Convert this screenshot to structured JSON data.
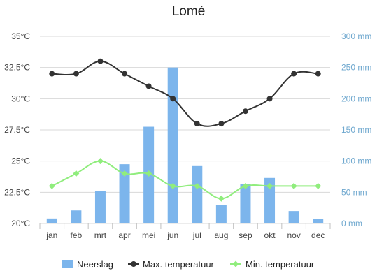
{
  "chart_data": {
    "type": "bar+line",
    "title": "Lomé",
    "categories": [
      "jan",
      "feb",
      "mrt",
      "apr",
      "mei",
      "jun",
      "jul",
      "aug",
      "sep",
      "okt",
      "nov",
      "dec"
    ],
    "y_left": {
      "min": 20,
      "max": 35,
      "ticks": [
        "20°C",
        "22.5°C",
        "25°C",
        "27.5°C",
        "30°C",
        "32.5°C",
        "35°C"
      ],
      "unit": "°C"
    },
    "y_right": {
      "min": 0,
      "max": 300,
      "ticks": [
        "0 mm",
        "50 mm",
        "100 mm",
        "150 mm",
        "200 mm",
        "250 mm",
        "300 mm"
      ],
      "unit": "mm"
    },
    "series": [
      {
        "name": "Neerslag",
        "type": "bar",
        "axis": "right",
        "color": "#7cb5ec",
        "values": [
          8,
          21,
          52,
          95,
          155,
          250,
          92,
          30,
          63,
          73,
          20,
          7
        ]
      },
      {
        "name": "Max. temperatuur",
        "type": "line",
        "axis": "left",
        "color": "#333333",
        "values": [
          32,
          32,
          33,
          32,
          31,
          30,
          28,
          28,
          29,
          30,
          32,
          32
        ]
      },
      {
        "name": "Min. temperatuur",
        "type": "line",
        "axis": "left",
        "color": "#90ed7d",
        "values": [
          23,
          24,
          25,
          24,
          24,
          23,
          23,
          22,
          23,
          23,
          23,
          23
        ]
      }
    ],
    "grid": true,
    "legend_position": "bottom"
  }
}
